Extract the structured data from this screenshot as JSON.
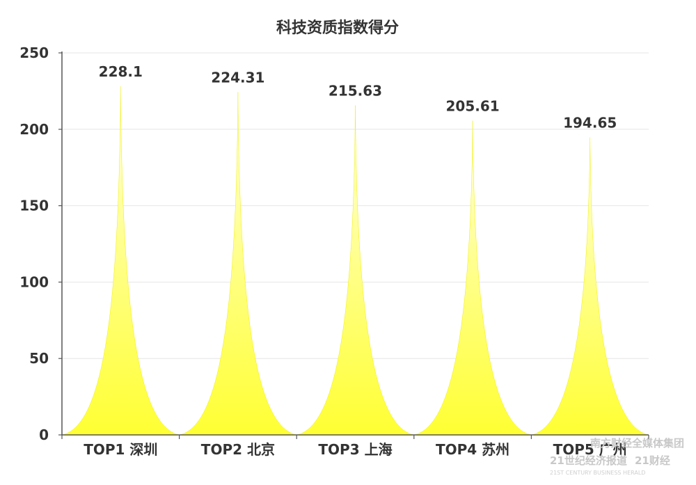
{
  "chart_data": {
    "type": "bar",
    "title": "科技资质指数得分",
    "categories": [
      "TOP1 深圳",
      "TOP2 北京",
      "TOP3 上海",
      "TOP4 苏州",
      "TOP5 广州"
    ],
    "values": [
      228.1,
      224.31,
      215.63,
      205.61,
      194.65
    ],
    "value_labels": [
      "228.1",
      "224.31",
      "215.63",
      "205.61",
      "194.65"
    ],
    "yticks": [
      "0",
      "50",
      "100",
      "150",
      "200",
      "250"
    ],
    "ylim": [
      0,
      250
    ],
    "grid": true,
    "bar_style": "pictorial-spike",
    "colors": {
      "fill_top": "#ffffd8",
      "fill_bottom": "#ffff33",
      "edge": "#f0f000",
      "grid": "#e6e6e6",
      "axis": "#555555",
      "text": "#333333"
    }
  },
  "watermark": {
    "line1": "南方财经全媒体集团",
    "line2": "21世纪经济报道",
    "line3": "21财经",
    "line4": "21ST CENTURY BUSINESS HERALD"
  }
}
